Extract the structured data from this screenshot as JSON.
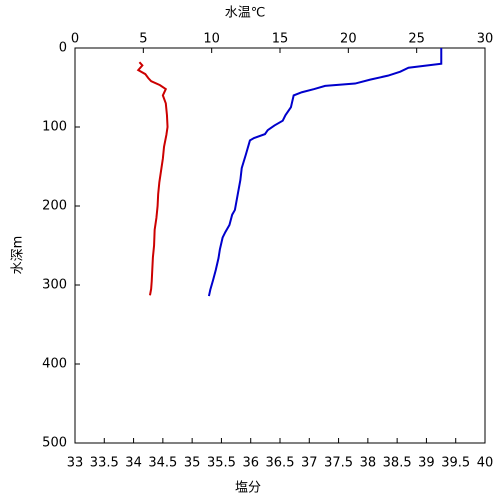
{
  "chart_data": {
    "type": "line",
    "xlabel": "塩分",
    "xlabel_color": "#cc0000",
    "x2label": "水温℃",
    "x2label_color": "#0000cc",
    "ylabel": "水深m",
    "xlim": [
      33,
      40
    ],
    "xticks": [
      33,
      33.5,
      34,
      34.5,
      35,
      35.5,
      36,
      36.5,
      37,
      37.5,
      38,
      38.5,
      39,
      39.5,
      40
    ],
    "x2lim": [
      0,
      30
    ],
    "x2ticks": [
      0,
      5,
      10,
      15,
      20,
      25,
      30
    ],
    "ylim": [
      0,
      500
    ],
    "yticks": [
      0,
      100,
      200,
      300,
      400,
      500
    ],
    "y_inverted": true,
    "series": [
      {
        "color": "#0000cc",
        "axis": "x2",
        "depth": [
          0,
          20,
          25,
          30,
          35,
          40,
          45,
          48,
          52,
          56,
          60,
          75,
          85,
          92,
          98,
          104,
          109,
          114,
          117,
          135,
          152,
          167,
          186,
          205,
          211,
          224,
          233,
          240,
          255,
          266,
          281,
          294,
          306,
          314
        ],
        "values": [
          26.8,
          26.8,
          24.4,
          23.8,
          22.9,
          21.6,
          20.5,
          18.3,
          17.5,
          16.6,
          16.0,
          15.8,
          15.4,
          15.2,
          14.6,
          14.1,
          13.9,
          13.1,
          12.8,
          12.5,
          12.2,
          12.1,
          11.9,
          11.7,
          11.5,
          11.3,
          11.0,
          10.8,
          10.6,
          10.5,
          10.3,
          10.1,
          9.9,
          9.8
        ]
      },
      {
        "color": "#cc0000",
        "axis": "x",
        "depth": [
          18,
          22,
          28,
          33,
          38,
          42,
          47,
          52,
          60,
          70,
          85,
          100,
          110,
          125,
          140,
          155,
          170,
          185,
          200,
          215,
          230,
          250,
          265,
          280,
          295,
          305,
          313
        ],
        "values": [
          34.1,
          34.15,
          34.08,
          34.2,
          34.25,
          34.3,
          34.45,
          34.55,
          34.5,
          34.55,
          34.57,
          34.58,
          34.56,
          34.52,
          34.5,
          34.47,
          34.44,
          34.42,
          34.41,
          34.39,
          34.36,
          34.35,
          34.33,
          34.32,
          34.31,
          34.3,
          34.28
        ]
      }
    ]
  }
}
